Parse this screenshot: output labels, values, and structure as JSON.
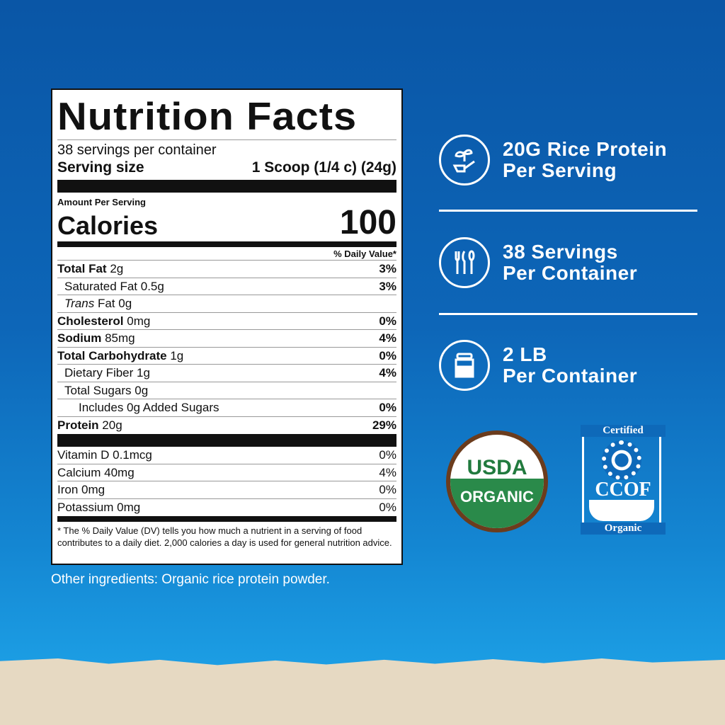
{
  "label": {
    "title": "Nutrition Facts",
    "servings": "38 servings per container",
    "serving_size_label": "Serving size",
    "serving_size_value": "1 Scoop (1/4 c) (24g)",
    "amount_per_serving": "Amount Per Serving",
    "calories_label": "Calories",
    "calories_value": "100",
    "dv_header": "% Daily Value*",
    "nutrients": [
      {
        "name": "Total Fat",
        "amount": "2g",
        "dv": "3%"
      },
      {
        "name": "Saturated Fat",
        "amount": "0.5g",
        "dv": "3%"
      },
      {
        "name": "Trans",
        "name2": "Fat",
        "amount": "0g",
        "dv": ""
      },
      {
        "name": "Cholesterol",
        "amount": "0mg",
        "dv": "0%"
      },
      {
        "name": "Sodium",
        "amount": "85mg",
        "dv": "4%"
      },
      {
        "name": "Total Carbohydrate",
        "amount": "1g",
        "dv": "0%"
      },
      {
        "name": "Dietary Fiber",
        "amount": "1g",
        "dv": "4%"
      },
      {
        "name": "Total Sugars",
        "amount": "0g",
        "dv": ""
      },
      {
        "name": "Includes 0g Added Sugars",
        "amount": "",
        "dv": "0%"
      },
      {
        "name": "Protein",
        "amount": "20g",
        "dv": "29%"
      }
    ],
    "vitamins": [
      {
        "name": "Vitamin D",
        "amount": "0.1mcg",
        "dv": "0%"
      },
      {
        "name": "Calcium",
        "amount": "40mg",
        "dv": "4%"
      },
      {
        "name": "Iron",
        "amount": "0mg",
        "dv": "0%"
      },
      {
        "name": "Potassium",
        "amount": "0mg",
        "dv": "0%"
      }
    ],
    "footnote": "* The % Daily Value (DV) tells you how much a nutrient in a serving of food contributes to a daily diet. 2,000 calories a day is used for general nutrition advice."
  },
  "other_ingredients": "Other ingredients: Organic rice protein powder.",
  "features": [
    {
      "icon": "plant-scoop-icon",
      "line1": "20G Rice Protein",
      "line2": "Per Serving"
    },
    {
      "icon": "utensils-icon",
      "line1": "38 Servings",
      "line2": "Per Container"
    },
    {
      "icon": "jar-icon",
      "line1": "2 LB",
      "line2": "Per Container"
    }
  ],
  "badges": {
    "usda_top": "USDA",
    "usda_bottom": "ORGANIC",
    "ccof_top": "Certified",
    "ccof_mid": "CCOF",
    "ccof_bottom": "Organic"
  }
}
